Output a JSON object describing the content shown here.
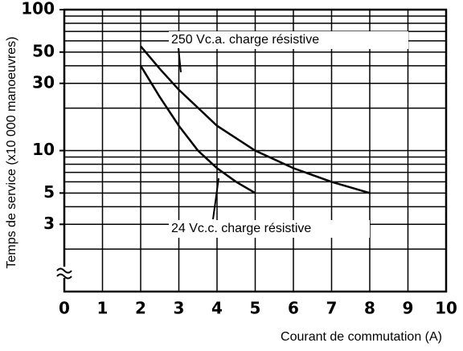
{
  "chart_data": {
    "type": "line",
    "x_label": "Courant de commutation (A)",
    "y_label": "Temps de service (x10 000 manoeuvres)",
    "xlim": [
      0,
      10
    ],
    "xticks": [
      0,
      1,
      2,
      3,
      4,
      5,
      6,
      7,
      8,
      9,
      10
    ],
    "ylim": [
      1,
      100
    ],
    "yticks": [
      3,
      5,
      10,
      30,
      50,
      100
    ],
    "ygrid": [
      2,
      3,
      4,
      5,
      6,
      7,
      8,
      9,
      10,
      20,
      30,
      40,
      50,
      60,
      70,
      80,
      90,
      100
    ],
    "y_scale": "log",
    "grid": true,
    "series": [
      {
        "name": "250 Vc.a. charge résistive",
        "color": "#000000",
        "x": [
          2,
          2.5,
          3,
          4,
          5,
          6,
          7,
          8
        ],
        "values": [
          55,
          38,
          27,
          15,
          10,
          7.5,
          6,
          5
        ]
      },
      {
        "name": "24 Vc.c. charge résistive",
        "color": "#000000",
        "x": [
          2,
          2.5,
          3,
          3.5,
          4,
          4.5,
          5
        ],
        "values": [
          40,
          24,
          15,
          10,
          7.5,
          6,
          5
        ]
      }
    ]
  }
}
